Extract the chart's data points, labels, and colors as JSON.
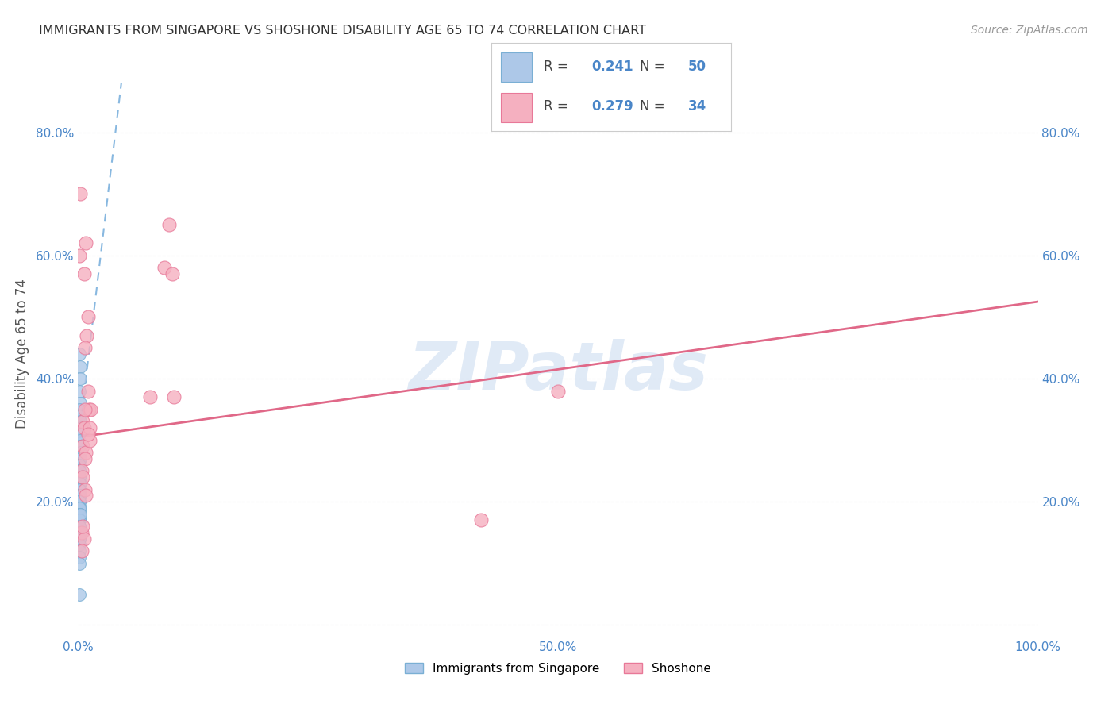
{
  "title": "IMMIGRANTS FROM SINGAPORE VS SHOSHONE DISABILITY AGE 65 TO 74 CORRELATION CHART",
  "source": "Source: ZipAtlas.com",
  "ylabel": "Disability Age 65 to 74",
  "xlim": [
    0,
    1.0
  ],
  "ylim": [
    -0.02,
    0.9
  ],
  "xticks": [
    0.0,
    0.1,
    0.2,
    0.3,
    0.4,
    0.5,
    0.6,
    0.7,
    0.8,
    0.9,
    1.0
  ],
  "yticks": [
    0.0,
    0.2,
    0.4,
    0.6,
    0.8
  ],
  "xticklabels": [
    "0.0%",
    "",
    "",
    "",
    "",
    "50.0%",
    "",
    "",
    "",
    "",
    "100.0%"
  ],
  "yticklabels": [
    "",
    "20.0%",
    "40.0%",
    "60.0%",
    "80.0%"
  ],
  "right_yticklabels": [
    "",
    "20.0%",
    "40.0%",
    "60.0%",
    "80.0%"
  ],
  "legend_labels": [
    "Immigrants from Singapore",
    "Shoshone"
  ],
  "blue_r": "0.241",
  "blue_n": "50",
  "pink_r": "0.279",
  "pink_n": "34",
  "blue_fill": "#adc8e8",
  "blue_edge": "#7aafd4",
  "pink_fill": "#f5b0c0",
  "pink_edge": "#e87898",
  "blue_line_color": "#88b8e0",
  "pink_line_color": "#e06888",
  "text_color": "#333333",
  "axis_label_color": "#4a86c8",
  "watermark_color": "#c8daf0",
  "grid_color": "#e0e0ec",
  "background_color": "#ffffff",
  "blue_scatter_x": [
    0.001,
    0.002,
    0.001,
    0.002,
    0.002,
    0.001,
    0.001,
    0.002,
    0.003,
    0.001,
    0.001,
    0.001,
    0.002,
    0.001,
    0.002,
    0.001,
    0.001,
    0.001,
    0.001,
    0.001,
    0.002,
    0.001,
    0.001,
    0.001,
    0.001,
    0.002,
    0.001,
    0.001,
    0.001,
    0.001,
    0.002,
    0.001,
    0.001,
    0.001,
    0.001,
    0.001,
    0.001,
    0.001,
    0.001,
    0.001,
    0.002,
    0.001,
    0.001,
    0.001,
    0.001,
    0.001,
    0.001,
    0.001,
    0.002,
    0.001
  ],
  "blue_scatter_y": [
    0.44,
    0.42,
    0.38,
    0.4,
    0.36,
    0.35,
    0.34,
    0.33,
    0.32,
    0.31,
    0.3,
    0.29,
    0.28,
    0.27,
    0.27,
    0.26,
    0.25,
    0.25,
    0.24,
    0.24,
    0.23,
    0.23,
    0.22,
    0.22,
    0.21,
    0.21,
    0.21,
    0.2,
    0.2,
    0.19,
    0.19,
    0.19,
    0.18,
    0.18,
    0.17,
    0.17,
    0.17,
    0.16,
    0.16,
    0.15,
    0.15,
    0.15,
    0.14,
    0.14,
    0.13,
    0.12,
    0.11,
    0.1,
    0.18,
    0.05
  ],
  "pink_scatter_x": [
    0.001,
    0.006,
    0.008,
    0.01,
    0.009,
    0.007,
    0.01,
    0.011,
    0.005,
    0.006,
    0.012,
    0.013,
    0.09,
    0.095,
    0.1,
    0.098,
    0.005,
    0.008,
    0.012,
    0.007,
    0.004,
    0.005,
    0.007,
    0.008,
    0.01,
    0.004,
    0.006,
    0.5,
    0.075,
    0.005,
    0.004,
    0.007,
    0.002,
    0.42
  ],
  "pink_scatter_y": [
    0.6,
    0.57,
    0.62,
    0.5,
    0.47,
    0.45,
    0.38,
    0.35,
    0.33,
    0.32,
    0.32,
    0.35,
    0.58,
    0.65,
    0.37,
    0.57,
    0.29,
    0.28,
    0.3,
    0.27,
    0.25,
    0.24,
    0.22,
    0.21,
    0.31,
    0.15,
    0.14,
    0.38,
    0.37,
    0.16,
    0.12,
    0.35,
    0.7,
    0.17
  ],
  "blue_line_x": [
    0.0,
    0.045
  ],
  "blue_line_y": [
    0.295,
    0.88
  ],
  "pink_line_x": [
    0.0,
    1.0
  ],
  "pink_line_y": [
    0.305,
    0.525
  ]
}
